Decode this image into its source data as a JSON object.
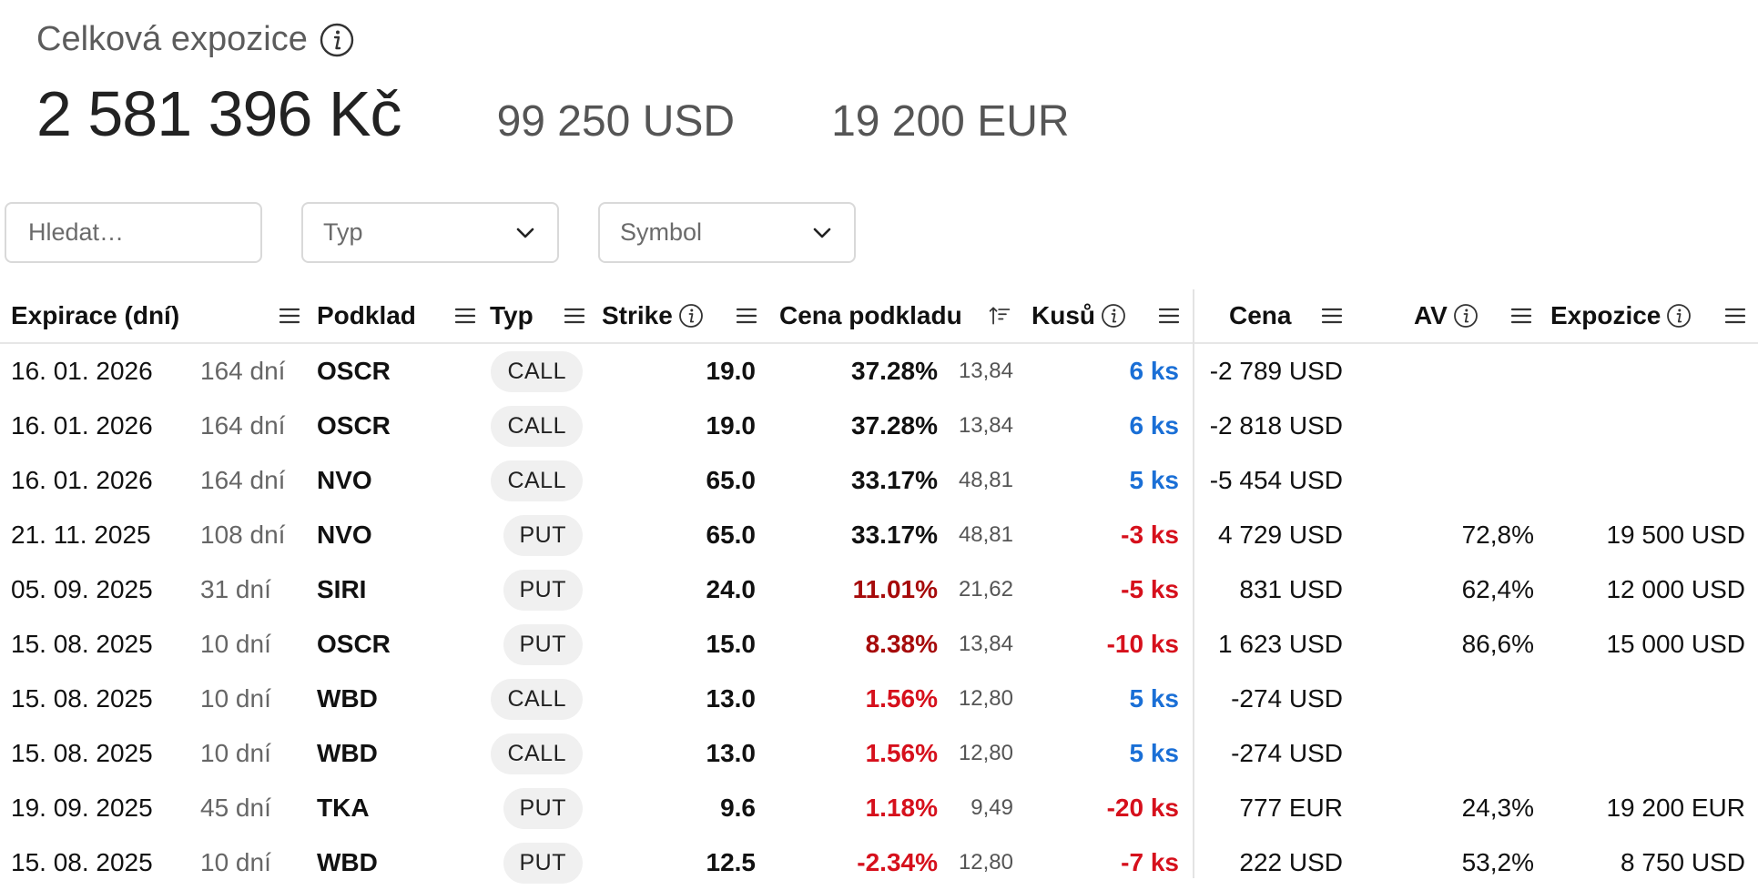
{
  "header": {
    "title": "Celková expozice",
    "total_czk": "2 581 396 Kč",
    "total_usd": "99 250 USD",
    "total_eur": "19 200 EUR"
  },
  "filters": {
    "search_placeholder": "Hledat…",
    "type_placeholder": "Typ",
    "symbol_placeholder": "Symbol"
  },
  "columns": {
    "expiration": "Expirace (dní)",
    "underlying": "Podklad",
    "type": "Typ",
    "strike": "Strike",
    "underlying_price": "Cena podkladu",
    "quantity": "Kusů",
    "price": "Cena",
    "av": "AV",
    "exposure": "Expozice"
  },
  "colors": {
    "positive_qty": "#1a6fd6",
    "negative_qty": "#d6101c",
    "pct_dark_red": "#a60a0a"
  },
  "rows": [
    {
      "date": "16. 01. 2026",
      "days": "164 dní",
      "symbol": "OSCR",
      "type": "CALL",
      "strike": "19.0",
      "pct": "37.28%",
      "pct_tone": "blk",
      "under_price": "13,84",
      "qty": "6 ks",
      "qty_tone": "blue",
      "price": "-2 789 USD",
      "av": "",
      "exposure": ""
    },
    {
      "date": "16. 01. 2026",
      "days": "164 dní",
      "symbol": "OSCR",
      "type": "CALL",
      "strike": "19.0",
      "pct": "37.28%",
      "pct_tone": "blk",
      "under_price": "13,84",
      "qty": "6 ks",
      "qty_tone": "blue",
      "price": "-2 818 USD",
      "av": "",
      "exposure": ""
    },
    {
      "date": "16. 01. 2026",
      "days": "164 dní",
      "symbol": "NVO",
      "type": "CALL",
      "strike": "65.0",
      "pct": "33.17%",
      "pct_tone": "blk",
      "under_price": "48,81",
      "qty": "5 ks",
      "qty_tone": "blue",
      "price": "-5 454 USD",
      "av": "",
      "exposure": ""
    },
    {
      "date": "21. 11. 2025",
      "days": "108 dní",
      "symbol": "NVO",
      "type": "PUT",
      "strike": "65.0",
      "pct": "33.17%",
      "pct_tone": "blk",
      "under_price": "48,81",
      "qty": "-3 ks",
      "qty_tone": "red",
      "price": "4 729 USD",
      "av": "72,8%",
      "exposure": "19 500 USD"
    },
    {
      "date": "05. 09. 2025",
      "days": "31 dní",
      "symbol": "SIRI",
      "type": "PUT",
      "strike": "24.0",
      "pct": "11.01%",
      "pct_tone": "dred",
      "under_price": "21,62",
      "qty": "-5 ks",
      "qty_tone": "red",
      "price": "831 USD",
      "av": "62,4%",
      "exposure": "12 000 USD"
    },
    {
      "date": "15. 08. 2025",
      "days": "10 dní",
      "symbol": "OSCR",
      "type": "PUT",
      "strike": "15.0",
      "pct": "8.38%",
      "pct_tone": "dred",
      "under_price": "13,84",
      "qty": "-10 ks",
      "qty_tone": "red",
      "price": "1 623 USD",
      "av": "86,6%",
      "exposure": "15 000 USD"
    },
    {
      "date": "15. 08. 2025",
      "days": "10 dní",
      "symbol": "WBD",
      "type": "CALL",
      "strike": "13.0",
      "pct": "1.56%",
      "pct_tone": "red",
      "under_price": "12,80",
      "qty": "5 ks",
      "qty_tone": "blue",
      "price": "-274 USD",
      "av": "",
      "exposure": ""
    },
    {
      "date": "15. 08. 2025",
      "days": "10 dní",
      "symbol": "WBD",
      "type": "CALL",
      "strike": "13.0",
      "pct": "1.56%",
      "pct_tone": "red",
      "under_price": "12,80",
      "qty": "5 ks",
      "qty_tone": "blue",
      "price": "-274 USD",
      "av": "",
      "exposure": ""
    },
    {
      "date": "19. 09. 2025",
      "days": "45 dní",
      "symbol": "TKA",
      "type": "PUT",
      "strike": "9.6",
      "pct": "1.18%",
      "pct_tone": "red",
      "under_price": "9,49",
      "qty": "-20 ks",
      "qty_tone": "red",
      "price": "777 EUR",
      "av": "24,3%",
      "exposure": "19 200 EUR"
    },
    {
      "date": "15. 08. 2025",
      "days": "10 dní",
      "symbol": "WBD",
      "type": "PUT",
      "strike": "12.5",
      "pct": "-2.34%",
      "pct_tone": "red",
      "under_price": "12,80",
      "qty": "-7 ks",
      "qty_tone": "red",
      "price": "222 USD",
      "av": "53,2%",
      "exposure": "8 750 USD"
    }
  ]
}
